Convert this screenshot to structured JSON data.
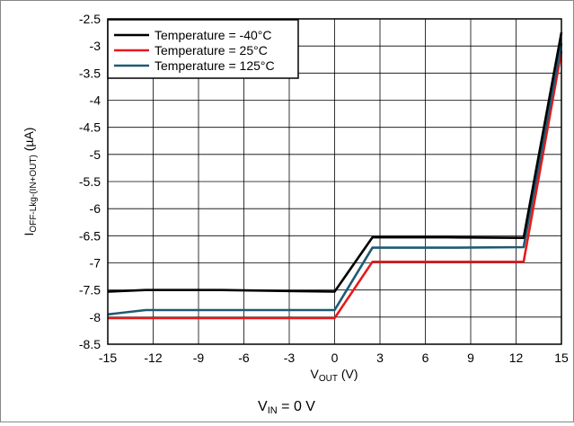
{
  "chart_data": {
    "type": "line",
    "x_ticks": [
      "-15",
      "-12",
      "-9",
      "-6",
      "-3",
      "0",
      "3",
      "6",
      "9",
      "12",
      "15"
    ],
    "y_ticks": [
      "-2.5",
      "-3",
      "-3.5",
      "-4",
      "-4.5",
      "-5",
      "-5.5",
      "-6",
      "-6.5",
      "-7",
      "-7.5",
      "-8",
      "-8.5"
    ],
    "xlim": [
      -15,
      15
    ],
    "ylim": [
      -8.5,
      -2.5
    ],
    "grid": true,
    "legend_position": "top-left",
    "xlabel": {
      "main": "V",
      "sub": "OUT",
      "rest": " (V)"
    },
    "ylabel": {
      "main": "I",
      "sub": "OFF-Lkg-(IN+OUT)",
      "rest": " (µA)"
    },
    "caption": {
      "main": "V",
      "sub": "IN",
      "rest": " = 0 V"
    },
    "series": [
      {
        "name": "Temperature = -40°C",
        "color": "#000000",
        "points": [
          [
            -15,
            -7.53
          ],
          [
            -12.5,
            -7.5
          ],
          [
            -7.5,
            -7.5
          ],
          [
            -2.5,
            -7.52
          ],
          [
            0,
            -7.53
          ],
          [
            2.5,
            -6.53
          ],
          [
            7.5,
            -6.53
          ],
          [
            12.5,
            -6.54
          ],
          [
            15,
            -2.75
          ]
        ]
      },
      {
        "name": "Temperature = 25°C",
        "color": "#e8191b",
        "points": [
          [
            -15,
            -8.02
          ],
          [
            -12.5,
            -8.02
          ],
          [
            -7.5,
            -8.02
          ],
          [
            -2.5,
            -8.02
          ],
          [
            0,
            -8.02
          ],
          [
            2.5,
            -6.98
          ],
          [
            7.5,
            -6.98
          ],
          [
            12.5,
            -6.98
          ],
          [
            15,
            -3.1
          ]
        ]
      },
      {
        "name": "Temperature = 125°C",
        "color": "#1f5a72",
        "points": [
          [
            -15,
            -7.95
          ],
          [
            -12.5,
            -7.87
          ],
          [
            -7.5,
            -7.87
          ],
          [
            -2.5,
            -7.87
          ],
          [
            0,
            -7.87
          ],
          [
            2.5,
            -6.72
          ],
          [
            7.5,
            -6.72
          ],
          [
            12.5,
            -6.71
          ],
          [
            15,
            -2.95
          ]
        ]
      }
    ]
  }
}
